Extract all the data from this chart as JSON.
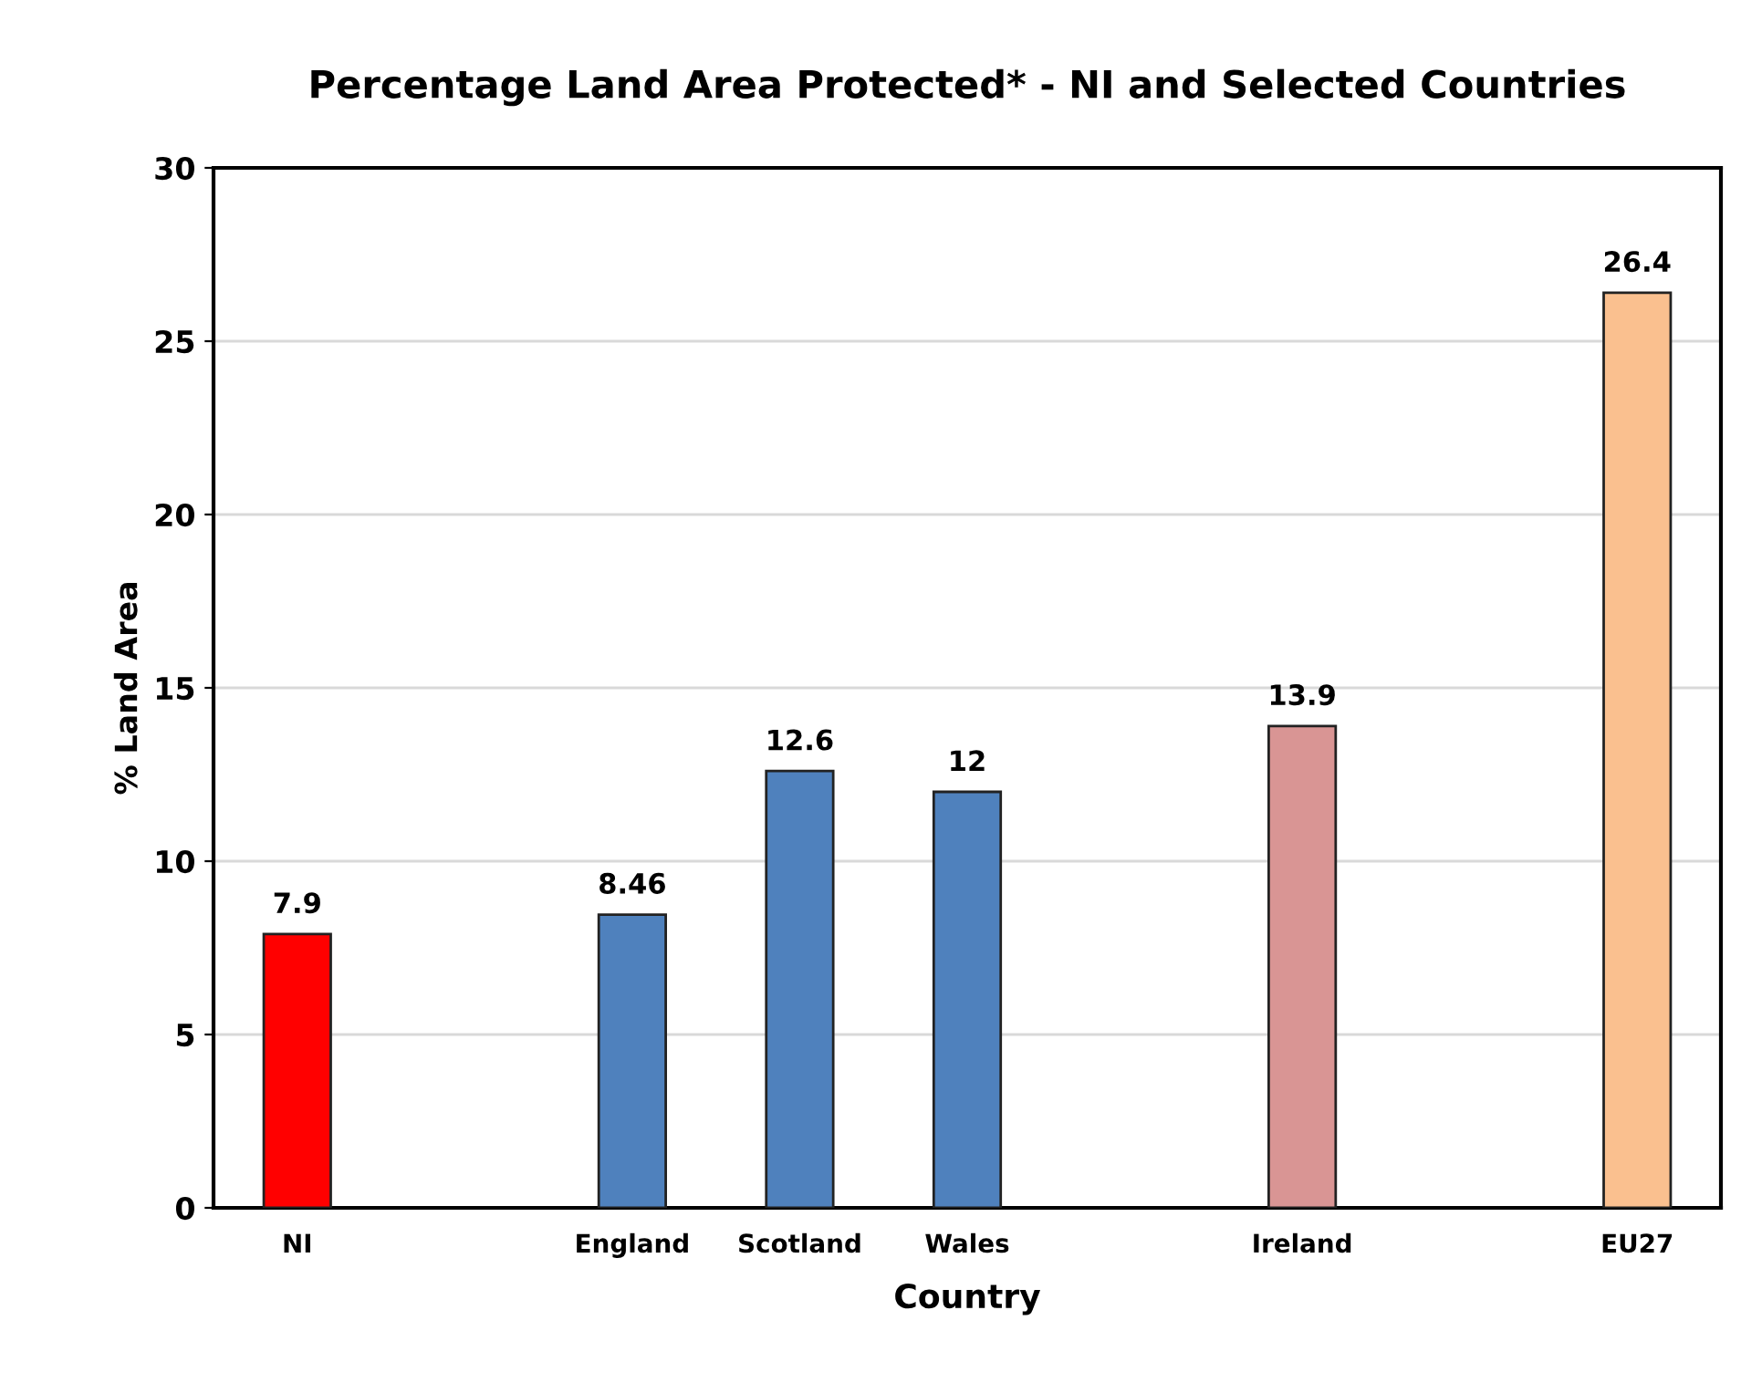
{
  "chart_data": {
    "type": "bar",
    "title": "Percentage Land Area Protected* - NI and Selected Countries",
    "xlabel": "Country",
    "ylabel": "% Land Area",
    "categories": [
      "NI",
      null,
      "England",
      "Scotland",
      "Wales",
      null,
      "Ireland",
      null,
      "EU27"
    ],
    "values": [
      7.9,
      null,
      8.46,
      12.6,
      12,
      null,
      13.9,
      null,
      26.4
    ],
    "colors": [
      "#ff0000",
      "#ffffff",
      "#4f81bd",
      "#4f81bd",
      "#4f81bd",
      "#ffffff",
      "#d99594",
      "#ffffff",
      "#fac08f"
    ],
    "ylim": [
      0,
      30
    ],
    "yticks": [
      0,
      5,
      10,
      15,
      20,
      25,
      30
    ],
    "grid": "y",
    "data_labels": true
  }
}
